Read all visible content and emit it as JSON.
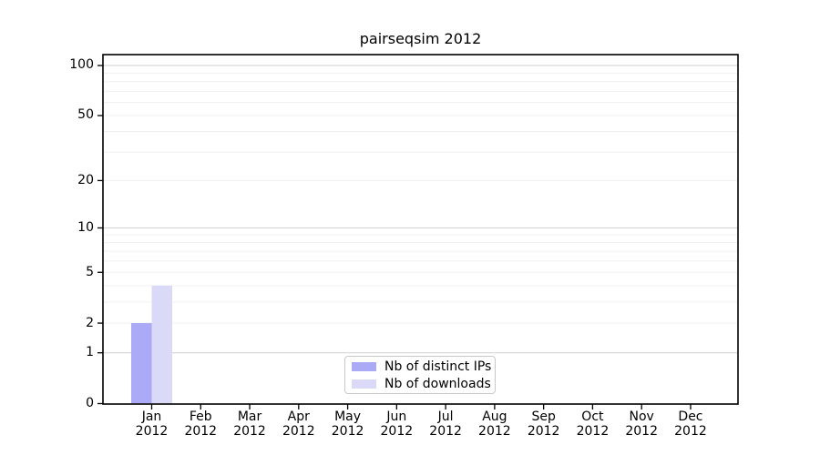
{
  "page": {
    "background": "#ffffff"
  },
  "chart_data": {
    "type": "bar",
    "title": "pairseqsim 2012",
    "categories": [
      "Jan 2012",
      "Feb 2012",
      "Mar 2012",
      "Apr 2012",
      "May 2012",
      "Jun 2012",
      "Jul 2012",
      "Aug 2012",
      "Sep 2012",
      "Oct 2012",
      "Nov 2012",
      "Dec 2012"
    ],
    "series": [
      {
        "name": "Nb of distinct IPs",
        "color": "#aaaaf6",
        "values": [
          2,
          0,
          0,
          0,
          0,
          0,
          0,
          0,
          0,
          0,
          0,
          0
        ]
      },
      {
        "name": "Nb of downloads",
        "color": "#dadaf8",
        "values": [
          4,
          0,
          0,
          0,
          0,
          0,
          0,
          0,
          0,
          0,
          0,
          0
        ]
      }
    ],
    "xlabel": "",
    "ylabel": "",
    "yscale": "log1p",
    "ylim": [
      0,
      115
    ],
    "yticks": [
      0,
      1,
      2,
      5,
      10,
      20,
      50,
      100
    ],
    "major_gridlines": [
      1,
      10,
      100
    ],
    "minor_gridlines": [
      2,
      3,
      4,
      5,
      6,
      7,
      8,
      9,
      20,
      30,
      40,
      50,
      60,
      70,
      80,
      90
    ],
    "grid": true,
    "legend_position": "lower-center",
    "colors": {
      "axis": "#000000",
      "major_grid": "#d4d4d4",
      "minor_grid": "#f0f0f0",
      "tick_text": "#000000"
    }
  }
}
